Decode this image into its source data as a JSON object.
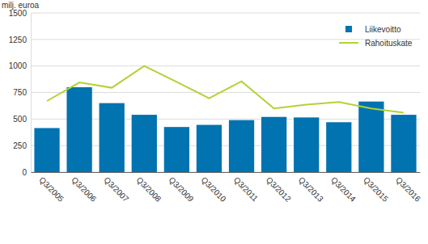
{
  "chart_data": {
    "type": "bar",
    "y_label": "milj. euroa",
    "categories": [
      "Q3/2005",
      "Q3/2006",
      "Q3/2007",
      "Q3/2008",
      "Q3/2009",
      "Q3/2010",
      "Q3/2011",
      "Q3/2012",
      "Q3/2013",
      "Q3/2014",
      "Q3/2015",
      "Q3/2016"
    ],
    "series": [
      {
        "name": "Liikevoitto",
        "type": "bar",
        "color": "#0073b0",
        "values": [
          415,
          800,
          650,
          540,
          425,
          445,
          490,
          520,
          515,
          470,
          665,
          540
        ]
      },
      {
        "name": "Rahoituskate",
        "type": "line",
        "color": "#b2d235",
        "values": [
          670,
          845,
          795,
          1000,
          850,
          695,
          855,
          600,
          635,
          660,
          600,
          560
        ]
      }
    ],
    "ylim": [
      0,
      1500
    ],
    "yticks": [
      0,
      250,
      500,
      750,
      1000,
      1250,
      1500
    ],
    "grid": true,
    "legend": "top-right"
  }
}
